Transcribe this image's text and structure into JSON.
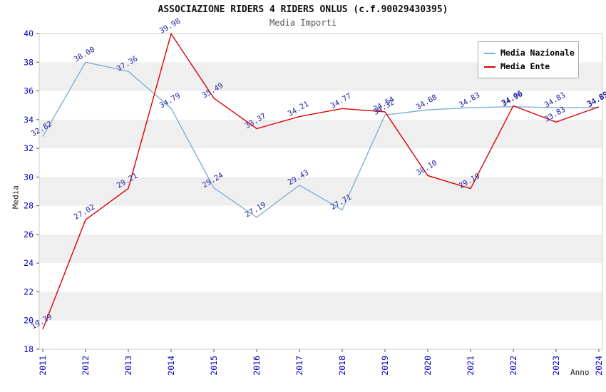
{
  "chart_data": {
    "type": "line",
    "title": "ASSOCIAZIONE RIDERS 4 RIDERS ONLUS (c.f.90029430395)",
    "subtitle": "Media Importi",
    "xlabel": "Anno",
    "ylabel": "Media",
    "ylim": [
      18,
      40
    ],
    "yticks": [
      18,
      20,
      22,
      24,
      26,
      28,
      30,
      32,
      34,
      36,
      38,
      40
    ],
    "categories": [
      "2011",
      "2012",
      "2013",
      "2014",
      "2015",
      "2016",
      "2017",
      "2018",
      "2019",
      "2020",
      "2021",
      "2022",
      "2023",
      "2024"
    ],
    "legend_position": "top-right",
    "grid_bands": true,
    "band_color": "#efefef",
    "tick_color": "#0000cc",
    "label_color": "#2525a0",
    "series": [
      {
        "name": "Media Nazionale",
        "color": "#7fb1d6",
        "values": [
          32.82,
          38.0,
          37.36,
          34.79,
          29.24,
          27.19,
          29.43,
          27.71,
          34.32,
          34.68,
          34.83,
          34.9,
          34.83,
          34.85
        ]
      },
      {
        "name": "Media Ente",
        "color": "#dd0000",
        "values": [
          19.39,
          27.02,
          29.21,
          39.98,
          35.49,
          33.37,
          34.21,
          34.77,
          34.54,
          30.1,
          29.19,
          34.96,
          33.83,
          34.89
        ]
      }
    ]
  }
}
